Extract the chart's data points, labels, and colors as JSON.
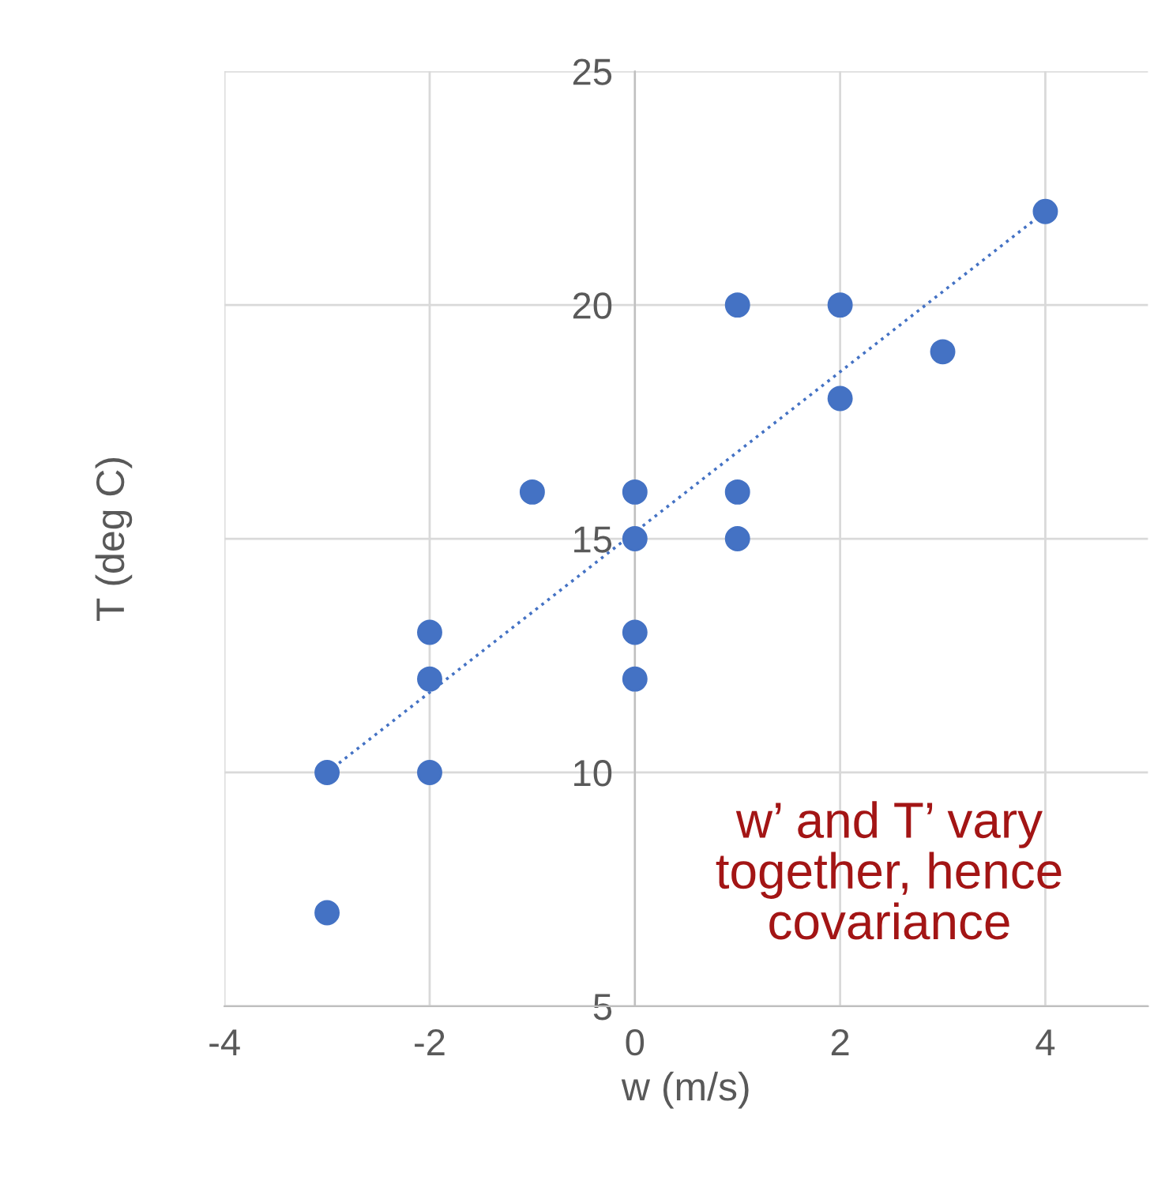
{
  "chart_data": {
    "type": "scatter",
    "xlabel": "w (m/s)",
    "ylabel": "T (deg C)",
    "xlim": [
      -4,
      5
    ],
    "ylim": [
      5,
      25
    ],
    "xticks": [
      -4,
      -2,
      0,
      2,
      4
    ],
    "yticks": [
      5,
      10,
      15,
      20,
      25
    ],
    "grid": true,
    "series": [
      {
        "marker": "circle",
        "color": "#4472c4",
        "x": [
          -3,
          -3,
          -2,
          -2,
          -2,
          -1,
          0,
          0,
          0,
          0,
          1,
          1,
          1,
          2,
          2,
          3,
          4
        ],
        "values": [
          10,
          7,
          13,
          12,
          10,
          16,
          16,
          15,
          13,
          12,
          20,
          16,
          15,
          20,
          18,
          19,
          22
        ]
      },
      {
        "type": "line",
        "color": "#4472c4",
        "line_style": "dotted",
        "x": [
          -3,
          4
        ],
        "values": [
          10,
          22
        ]
      }
    ],
    "annotations": [
      "w’ and T’ vary\ntogether, hence\ncovariance"
    ]
  }
}
